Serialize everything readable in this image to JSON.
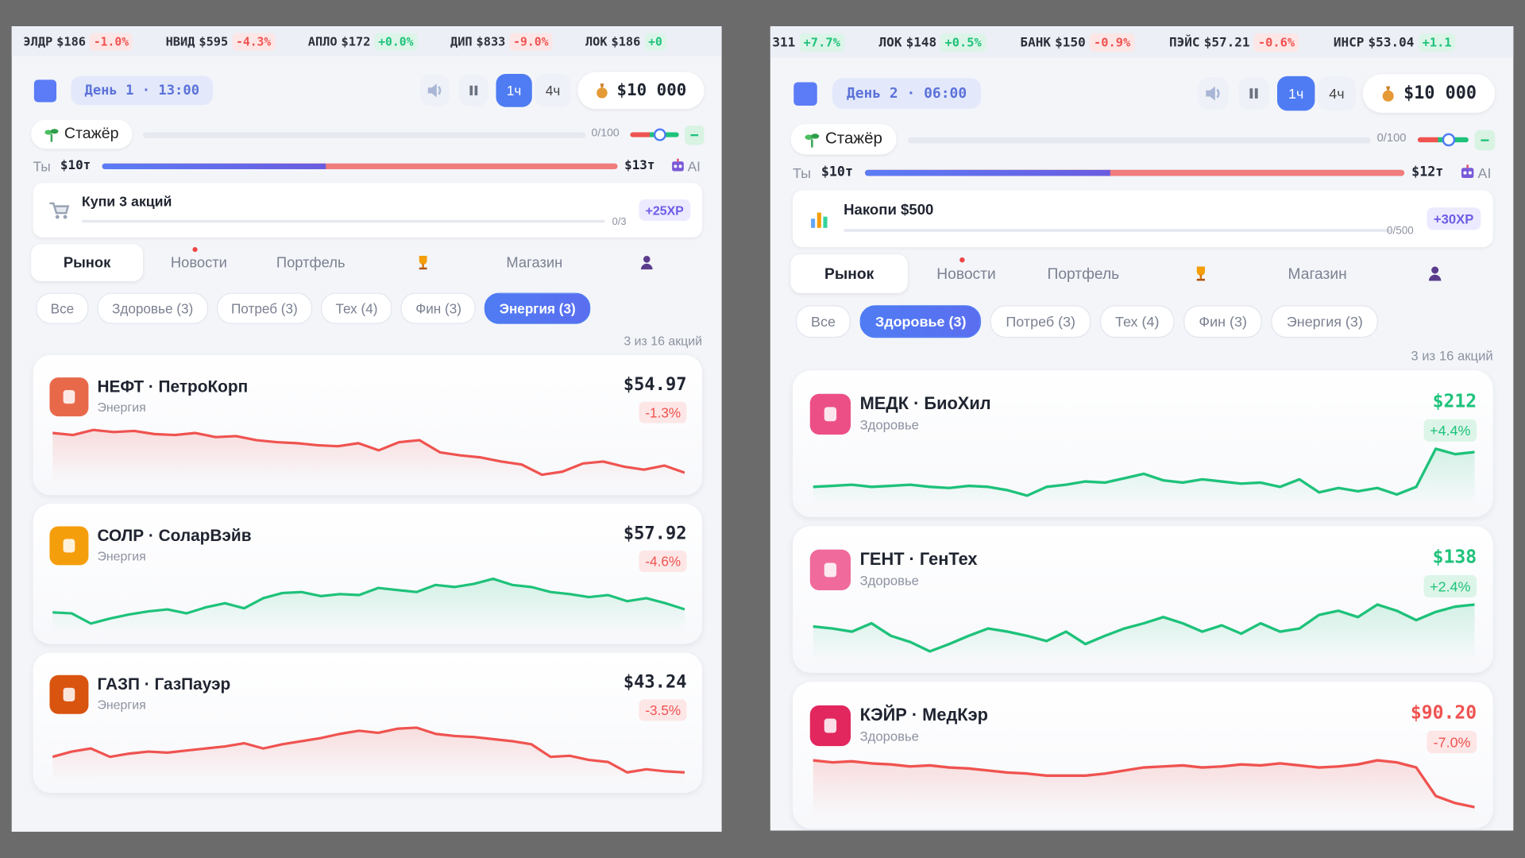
{
  "panels": [
    {
      "ticker": [
        {
          "symbol": "ЭЛДР",
          "price": "$186",
          "change": "-1.0%"
        },
        {
          "symbol": "НВИД",
          "price": "$595",
          "change": "-4.3%"
        },
        {
          "symbol": "АПЛО",
          "price": "$172",
          "change": "+0.0%"
        },
        {
          "symbol": "ДИП",
          "price": "$833",
          "change": "-9.0%"
        },
        {
          "symbol": "ЛОК",
          "price": "$186",
          "change": "+0"
        }
      ],
      "day": "День 1 · 13:00",
      "speeds": [
        "1ч",
        "4ч"
      ],
      "active_speed": 0,
      "balance": "$10 000",
      "rank": "Стажёр",
      "xp": "0/100",
      "race": {
        "you_label": "Ты",
        "you_value": "$10т",
        "ai_value": "$13т",
        "ai_label": "AI"
      },
      "quest": {
        "title": "Купи 3 акций",
        "progress": "0/3",
        "reward": "+25XP"
      },
      "tabs": [
        "Рынок",
        "Новости",
        "Портфель",
        "Магазин"
      ],
      "filters": [
        "Все",
        "Здоровье (3)",
        "Потреб (3)",
        "Тех (4)",
        "Фин (3)",
        "Энергия (3)"
      ],
      "active_filter": 5,
      "count": "3 из 16 акций",
      "price_colored": false,
      "stocks": [
        {
          "name": "НЕФТ · ПетроКорп",
          "sector": "Энергия",
          "price": "$54.97",
          "change": "-1.3%",
          "color": "#ef5350",
          "icon_color": "#e8694a",
          "spark": [
            56.95,
            56.85,
            57.1,
            57.0,
            57.05,
            56.9,
            56.85,
            56.95,
            56.75,
            56.8,
            56.6,
            56.5,
            56.45,
            56.35,
            56.3,
            56.45,
            56.1,
            56.5,
            56.6,
            56.0,
            55.85,
            55.75,
            55.55,
            55.4,
            54.9,
            55.05,
            55.45,
            55.55,
            55.3,
            55.15,
            55.35,
            55.0
          ]
        },
        {
          "name": "СОЛР · СоларВэйв",
          "sector": "Энергия",
          "price": "$57.92",
          "change": "-4.6%",
          "color": "#1ec27a",
          "icon_color": "#f59e0b",
          "spark": [
            57.62,
            57.52,
            56.52,
            57.02,
            57.42,
            57.72,
            57.92,
            57.52,
            58.12,
            58.52,
            58.02,
            59.02,
            59.52,
            59.62,
            59.22,
            59.42,
            59.32,
            60.02,
            59.82,
            59.62,
            60.32,
            60.12,
            60.42,
            60.92,
            60.32,
            60.12,
            59.62,
            59.42,
            59.12,
            59.32,
            58.72,
            59.02,
            58.52,
            57.92
          ]
        },
        {
          "name": "ГАЗП · ГазПауэр",
          "sector": "Энергия",
          "price": "$43.24",
          "change": "-3.5%",
          "color": "#ef5350",
          "icon_color": "#d9540f",
          "spark": [
            44.74,
            45.24,
            45.54,
            44.74,
            45.04,
            45.24,
            45.14,
            45.34,
            45.54,
            45.74,
            46.04,
            45.54,
            45.94,
            46.24,
            46.54,
            46.94,
            47.24,
            47.04,
            47.44,
            47.54,
            46.94,
            46.74,
            46.64,
            46.44,
            46.24,
            45.94,
            44.74,
            44.84,
            44.44,
            44.24,
            43.24,
            43.54,
            43.34,
            43.24
          ]
        }
      ]
    },
    {
      "ticker": [
        {
          "price": "311",
          "change": "+7.7%"
        },
        {
          "symbol": "ЛОК",
          "price": "$148",
          "change": "+0.5%"
        },
        {
          "symbol": "БАНК",
          "price": "$150",
          "change": "-0.9%"
        },
        {
          "symbol": "ПЭЙС",
          "price": "$57.21",
          "change": "-0.6%"
        },
        {
          "symbol": "ИНСР",
          "price": "$53.04",
          "change": "+1.1"
        }
      ],
      "day": "День 2 · 06:00",
      "speeds": [
        "1ч",
        "4ч"
      ],
      "active_speed": 0,
      "balance": "$10 000",
      "rank": "Стажёр",
      "xp": "0/100",
      "race": {
        "you_label": "Ты",
        "you_value": "$10т",
        "ai_value": "$12т",
        "ai_label": "AI"
      },
      "quest": {
        "title": "Накопи $500",
        "progress": "0/500",
        "reward": "+30XP"
      },
      "tabs": [
        "Рынок",
        "Новости",
        "Портфель",
        "Магазин"
      ],
      "filters": [
        "Все",
        "Здоровье (3)",
        "Потреб (3)",
        "Тех (4)",
        "Фин (3)",
        "Энергия (3)"
      ],
      "active_filter": 1,
      "count": "3 из 16 акций",
      "price_colored": true,
      "stocks": [
        {
          "name": "МЕДК · БиоХил",
          "sector": "Здоровье",
          "price": "$212",
          "change": "+4.4%",
          "color": "#1ec27a",
          "icon_color": "#ec4f86",
          "spark": [
            196,
            196.5,
            197,
            196,
            196.5,
            197,
            196,
            195.5,
            196.5,
            196,
            194.5,
            192,
            196,
            197,
            198.5,
            198,
            200,
            202,
            199,
            198,
            199.5,
            198.5,
            197.5,
            198,
            196,
            199.5,
            193.5,
            195.5,
            194,
            195.5,
            192.5,
            196,
            213.5,
            211,
            212
          ]
        },
        {
          "name": "ГЕНТ · ГенТех",
          "sector": "Здоровье",
          "price": "$138",
          "change": "+2.4%",
          "color": "#1ec27a",
          "icon_color": "#f06a9b",
          "spark": [
            131.7,
            131.1,
            130.2,
            132.6,
            129,
            127.2,
            124.5,
            126.6,
            129,
            131.1,
            130.2,
            129,
            127.5,
            130.2,
            126.6,
            129,
            131.1,
            132.6,
            134.4,
            132.6,
            130.2,
            132,
            129.6,
            132.6,
            130.2,
            131.1,
            135,
            136.2,
            134.4,
            138,
            136.2,
            133.5,
            135.9,
            137.4,
            138
          ]
        },
        {
          "name": "КЭЙР · МедКэр",
          "sector": "Здоровье",
          "price": "$90.20",
          "change": "-7.0%",
          "color": "#ef5350",
          "icon_color": "#e2265e",
          "spark": [
            97.1,
            96.8,
            96.95,
            96.65,
            96.5,
            96.2,
            96.35,
            96.05,
            95.9,
            95.6,
            95.3,
            95.15,
            94.85,
            94.85,
            94.85,
            95.15,
            95.6,
            96.05,
            96.2,
            96.35,
            96.05,
            96.2,
            96.5,
            96.35,
            96.65,
            96.35,
            96.05,
            96.2,
            96.5,
            97.1,
            96.8,
            96.05,
            91.85,
            90.8,
            90.2
          ]
        }
      ]
    }
  ]
}
